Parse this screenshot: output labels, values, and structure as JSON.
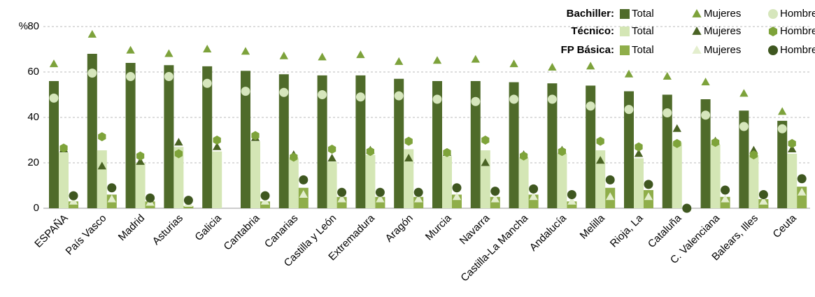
{
  "chart_data": {
    "type": "bar",
    "y_unit": "%",
    "categories": [
      "ESPAÑA",
      "País Vasco",
      "Madrid",
      "Asturias",
      "Galicia",
      "Cantabria",
      "Canarias",
      "Castilla y León",
      "Extremadura",
      "Aragón",
      "Murcia",
      "Navarra",
      "Castilla-La Mancha",
      "Andalucía",
      "Melilla",
      "Rioja, La",
      "Cataluña",
      "C. Valenciana",
      "Balears, Illes",
      "Ceuta"
    ],
    "ylim": [
      0,
      80
    ],
    "yticks": [
      0,
      20,
      40,
      60,
      80
    ],
    "grid": true,
    "groups": [
      {
        "name": "Bachiller:",
        "series": [
          {
            "name": "Total",
            "marker": "bar",
            "color": "#4f6b2a",
            "values": [
              56,
              68,
              64,
              63,
              62.5,
              60.5,
              59,
              58.5,
              58.5,
              57,
              56,
              56,
              55.5,
              55,
              54,
              51.5,
              50,
              48,
              43,
              38.5
            ]
          },
          {
            "name": "Mujeres",
            "marker": "triangle",
            "color": "#7da23b",
            "values": [
              63.5,
              76.5,
              69.5,
              68,
              70,
              69,
              67,
              66.5,
              67.5,
              64.5,
              65,
              65.5,
              63.5,
              62,
              62.5,
              59,
              58,
              55.5,
              50.5,
              42.5
            ]
          },
          {
            "name": "Hombres",
            "marker": "circle",
            "color": "#d6e6bc",
            "values": [
              48.5,
              59.5,
              58,
              58,
              55,
              51.5,
              51,
              50,
              49,
              49.5,
              48,
              47,
              48,
              48,
              45,
              43.5,
              42,
              41,
              36,
              35
            ]
          }
        ]
      },
      {
        "name": "Técnico:",
        "series": [
          {
            "name": "Total",
            "marker": "bar",
            "color": "#d4e6b5",
            "values": [
              24.5,
              25.5,
              20,
              27,
              25,
              29.5,
              22,
              20.5,
              23.5,
              26,
              23,
              25.5,
              22,
              24,
              25.5,
              22,
              29,
              28,
              23.5,
              24
            ]
          },
          {
            "name": "Mujeres",
            "marker": "triangle",
            "color": "#4a6324",
            "values": [
              26,
              18.5,
              20.5,
              29,
              27,
              31,
              23.5,
              22,
              25.5,
              22,
              24.5,
              20,
              23.5,
              25.5,
              21,
              24,
              35,
              29.5,
              25.5,
              26
            ]
          },
          {
            "name": "Hombres",
            "marker": "hexagon",
            "color": "#7ea33a",
            "values": [
              26.5,
              31.5,
              23,
              24,
              30,
              32,
              22.5,
              26,
              25,
              29.5,
              24.5,
              30,
              23,
              25,
              29.5,
              27,
              28.5,
              29,
              23.5,
              28.5
            ]
          }
        ]
      },
      {
        "name": "FP Básica:",
        "series": [
          {
            "name": "Total",
            "marker": "bar",
            "color": "#8fae4a",
            "values": [
              3,
              6,
              3,
              1,
              null,
              3,
              9,
              5,
              5,
              5,
              6,
              5,
              6,
              3,
              9,
              8,
              0,
              5,
              4,
              9.5
            ]
          },
          {
            "name": "Mujeres",
            "marker": "triangle",
            "color": "#e3eecd",
            "values": [
              3,
              4,
              2.5,
              2,
              null,
              3,
              6,
              4,
              4,
              4,
              5,
              4,
              5,
              3,
              5,
              5,
              0,
              4,
              3,
              7
            ]
          },
          {
            "name": "Hombres",
            "marker": "circle",
            "color": "#3f5720",
            "values": [
              5.5,
              9,
              4.5,
              3.5,
              null,
              5.5,
              12.5,
              7,
              7,
              7,
              9,
              7.5,
              8.5,
              6,
              12.5,
              10.5,
              0,
              8,
              6,
              13
            ]
          }
        ]
      }
    ]
  }
}
